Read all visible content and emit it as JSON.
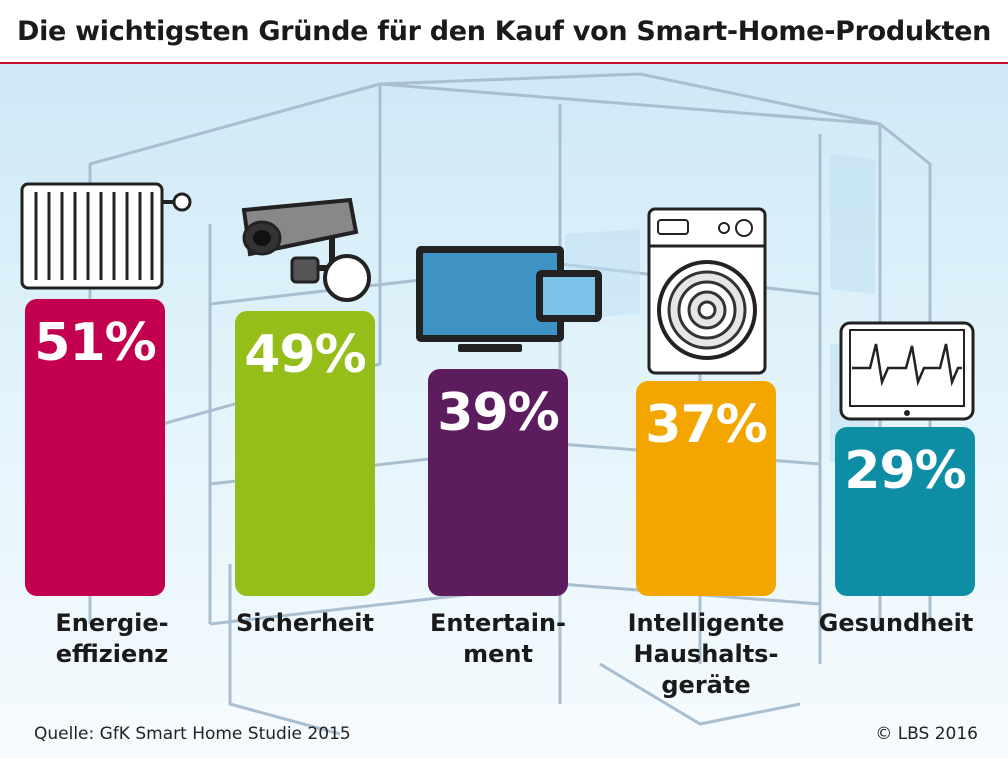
{
  "chart_data": {
    "type": "bar",
    "title": "Die wichtigsten Gründe für den Kauf von Smart-Home-Produkten",
    "categories": [
      "Energie-\neffizienz",
      "Sicherheit",
      "Entertain-\nment",
      "Intelligente\nHaushalts-\ngeräte",
      "Gesundheit"
    ],
    "values": [
      51,
      49,
      39,
      37,
      29
    ],
    "value_labels": [
      "51%",
      "49%",
      "39%",
      "37%",
      "29%"
    ],
    "unit": "%",
    "colors": [
      "#c2004f",
      "#95be1a",
      "#5c1c5e",
      "#f4a600",
      "#0e8ea4"
    ],
    "icons": [
      "radiator-icon",
      "security-camera-icon",
      "tv-tablet-icon",
      "washing-machine-icon",
      "heart-monitor-tablet-icon"
    ],
    "ylim": [
      0,
      51
    ]
  },
  "footer": {
    "source": "Quelle: GfK Smart Home Studie 2015",
    "copyright": "© LBS 2016"
  }
}
